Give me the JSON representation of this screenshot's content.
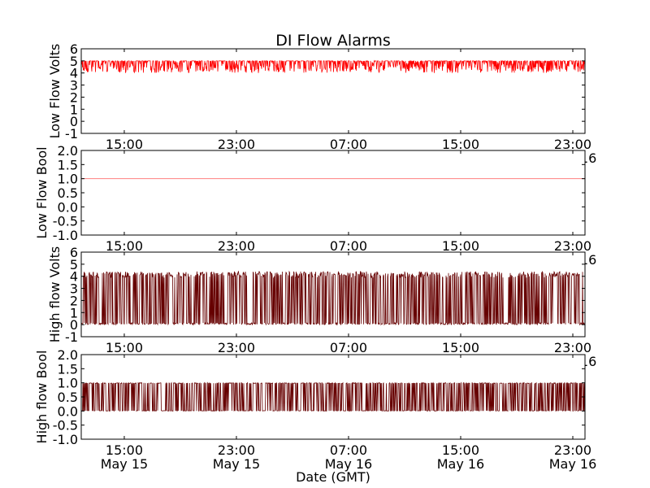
{
  "chart_data": {
    "type": "line",
    "title": "DI Flow Alarms",
    "xlabel": "Date (GMT)",
    "x_ticks": [
      {
        "time": "15:00",
        "date": "May 15",
        "hours": 15
      },
      {
        "time": "23:00",
        "date": "May 15",
        "hours": 23
      },
      {
        "time": "07:00",
        "date": "May 16",
        "hours": 31
      },
      {
        "time": "15:00",
        "date": "May 16",
        "hours": 39
      },
      {
        "time": "23:00",
        "date": "May 16",
        "hours": 47
      }
    ],
    "xlim_hours": [
      11.93,
      47.87
    ],
    "subplots": [
      {
        "ylabel": "Low Flow Volts",
        "ylim": [
          -1,
          6
        ],
        "yticks": [
          "-1",
          "0",
          "1",
          "2",
          "3",
          "4",
          "5",
          "6"
        ],
        "color": "#ff0000",
        "series": {
          "name": "Low Flow Volts",
          "baseline": 5.0,
          "min": 4.0,
          "max": 5.0,
          "pattern": "noise"
        }
      },
      {
        "ylabel": "Low Flow Bool",
        "ylim": [
          -1,
          2
        ],
        "yticks": [
          "-1.0",
          "-0.5",
          "0.0",
          "0.5",
          "1.0",
          "1.5",
          "2.0"
        ],
        "color": "#ff8080",
        "series": {
          "name": "Low Flow Bool",
          "baseline": 1.0,
          "min": 1.0,
          "max": 1.0,
          "pattern": "constant"
        }
      },
      {
        "ylabel": "High flow Volts",
        "ylim": [
          -1,
          6
        ],
        "yticks": [
          "-1",
          "0",
          "1",
          "2",
          "3",
          "4",
          "5",
          "6"
        ],
        "color": "#660000",
        "series": {
          "name": "High flow Volts",
          "baseline": 0.1,
          "min": 0.0,
          "max": 4.4,
          "pattern": "switching"
        }
      },
      {
        "ylabel": "High flow Bool",
        "ylim": [
          -1,
          2
        ],
        "yticks": [
          "-1.0",
          "-0.5",
          "0.0",
          "0.5",
          "1.0",
          "1.5",
          "2.0"
        ],
        "color": "#660000",
        "series": {
          "name": "High flow Bool",
          "baseline": 0.0,
          "min": 0.0,
          "max": 1.0,
          "pattern": "switching"
        }
      }
    ]
  }
}
